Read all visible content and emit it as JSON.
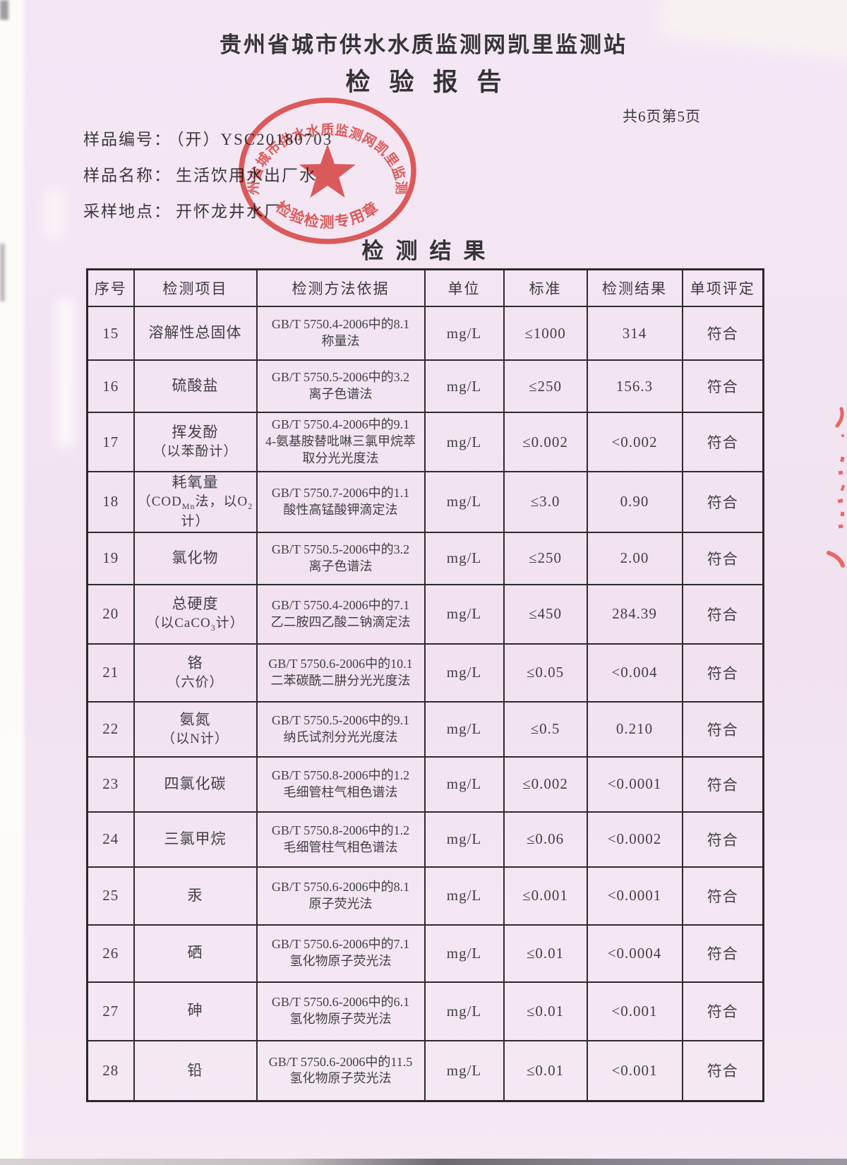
{
  "page": {
    "org_title": "贵州省城市供水水质监测网凯里监测站",
    "report_title": "检验报告",
    "page_indicator": "共6页第5页",
    "section_title": "检测结果"
  },
  "sample_info": [
    {
      "label": "样品编号：",
      "value": "（开）YSC20180703"
    },
    {
      "label": "样品名称：",
      "value": "生活饮用水出厂水"
    },
    {
      "label": "采样地点：",
      "value": "开怀龙井水厂"
    }
  ],
  "stamp": {
    "ring_text": "贵州省城市供水水质监测网凯里监测站",
    "bottom_text": "检验检测专用章"
  },
  "colors": {
    "paper": "#f3e5f2",
    "ink": "#3a3a3c",
    "table_line": "#2e2c2e",
    "stamp_red": "#e0423b"
  },
  "table": {
    "headers": [
      "序号",
      "检测项目",
      "检测方法依据",
      "单位",
      "标准",
      "检测结果",
      "单项评定"
    ],
    "rows": [
      {
        "no": "15",
        "item": [
          "溶解性总固体"
        ],
        "method": [
          "GB/T 5750.4-2006中的8.1",
          "称量法"
        ],
        "unit": "mg/L",
        "standard": "≤1000",
        "result": "314",
        "verdict": "符合"
      },
      {
        "no": "16",
        "item": [
          "硫酸盐"
        ],
        "method": [
          "GB/T 5750.5-2006中的3.2",
          "离子色谱法"
        ],
        "unit": "mg/L",
        "standard": "≤250",
        "result": "156.3",
        "verdict": "符合"
      },
      {
        "no": "17",
        "item": [
          "挥发酚",
          "（以苯酚计）"
        ],
        "method": [
          "GB/T 5750.4-2006中的9.1",
          "4-氨基胺替吡啉三氯甲烷萃",
          "取分光光度法"
        ],
        "unit": "mg/L",
        "standard": "≤0.002",
        "result": "<0.002",
        "verdict": "符合"
      },
      {
        "no": "18",
        "item": [
          "耗氧量",
          "（COD[Mn]法，以O[2]计）"
        ],
        "method": [
          "GB/T 5750.7-2006中的1.1",
          "酸性高锰酸钾滴定法"
        ],
        "unit": "mg/L",
        "standard": "≤3.0",
        "result": "0.90",
        "verdict": "符合"
      },
      {
        "no": "19",
        "item": [
          "氯化物"
        ],
        "method": [
          "GB/T 5750.5-2006中的3.2",
          "离子色谱法"
        ],
        "unit": "mg/L",
        "standard": "≤250",
        "result": "2.00",
        "verdict": "符合"
      },
      {
        "no": "20",
        "item": [
          "总硬度",
          "（以CaCO[3]计）"
        ],
        "method": [
          "GB/T 5750.4-2006中的7.1",
          "乙二胺四乙酸二钠滴定法"
        ],
        "unit": "mg/L",
        "standard": "≤450",
        "result": "284.39",
        "verdict": "符合"
      },
      {
        "no": "21",
        "item": [
          "铬",
          "（六价）"
        ],
        "method": [
          "GB/T 5750.6-2006中的10.1",
          "二苯碳酰二肼分光光度法"
        ],
        "unit": "mg/L",
        "standard": "≤0.05",
        "result": "<0.004",
        "verdict": "符合"
      },
      {
        "no": "22",
        "item": [
          "氨氮",
          "（以N计）"
        ],
        "method": [
          "GB/T 5750.5-2006中的9.1",
          "纳氏试剂分光光度法"
        ],
        "unit": "mg/L",
        "standard": "≤0.5",
        "result": "0.210",
        "verdict": "符合"
      },
      {
        "no": "23",
        "item": [
          "四氯化碳"
        ],
        "method": [
          "GB/T 5750.8-2006中的1.2",
          "毛细管柱气相色谱法"
        ],
        "unit": "mg/L",
        "standard": "≤0.002",
        "result": "<0.0001",
        "verdict": "符合"
      },
      {
        "no": "24",
        "item": [
          "三氯甲烷"
        ],
        "method": [
          "GB/T 5750.8-2006中的1.2",
          "毛细管柱气相色谱法"
        ],
        "unit": "mg/L",
        "standard": "≤0.06",
        "result": "<0.0002",
        "verdict": "符合"
      },
      {
        "no": "25",
        "item": [
          "汞"
        ],
        "method": [
          "GB/T 5750.6-2006中的8.1",
          "原子荧光法"
        ],
        "unit": "mg/L",
        "standard": "≤0.001",
        "result": "<0.0001",
        "verdict": "符合"
      },
      {
        "no": "26",
        "item": [
          "硒"
        ],
        "method": [
          "GB/T 5750.6-2006中的7.1",
          "氢化物原子荧光法"
        ],
        "unit": "mg/L",
        "standard": "≤0.01",
        "result": "<0.0004",
        "verdict": "符合"
      },
      {
        "no": "27",
        "item": [
          "砷"
        ],
        "method": [
          "GB/T 5750.6-2006中的6.1",
          "氢化物原子荧光法"
        ],
        "unit": "mg/L",
        "standard": "≤0.01",
        "result": "<0.001",
        "verdict": "符合"
      },
      {
        "no": "28",
        "item": [
          "铅"
        ],
        "method": [
          "GB/T 5750.6-2006中的11.5",
          "氢化物原子荧光法"
        ],
        "unit": "mg/L",
        "standard": "≤0.01",
        "result": "<0.001",
        "verdict": "符合"
      }
    ]
  }
}
